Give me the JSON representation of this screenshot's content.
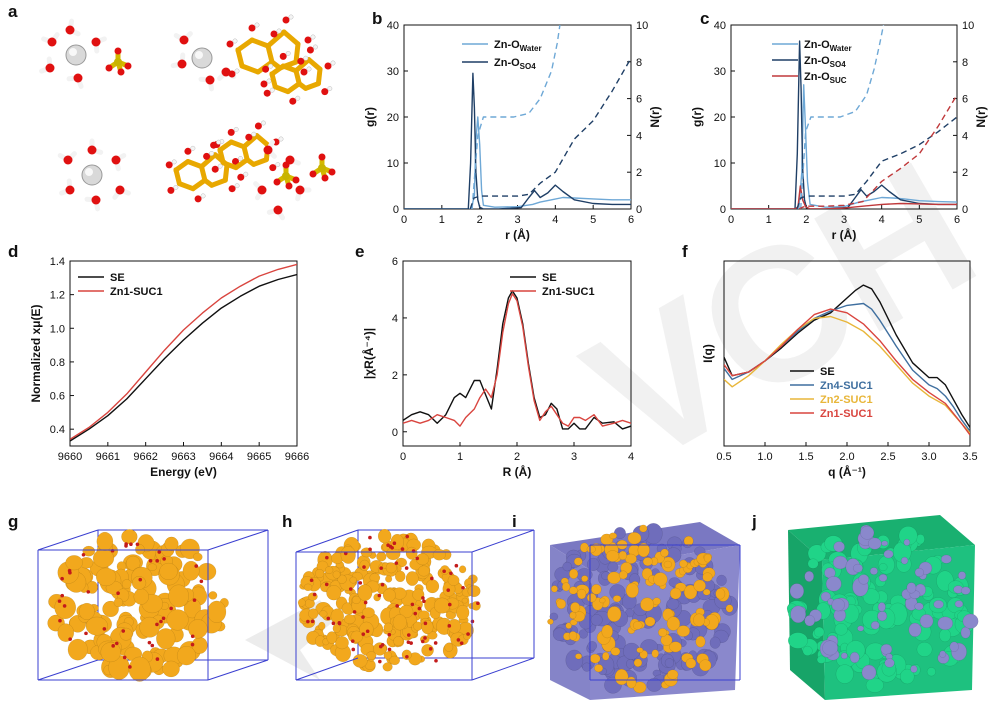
{
  "figure": {
    "watermark_text": "VCH",
    "panel_letters": [
      "a",
      "b",
      "c",
      "d",
      "e",
      "f",
      "g",
      "h",
      "i",
      "j"
    ],
    "colors": {
      "water": "#6ea8d6",
      "so4": "#1f3f66",
      "suc": "#c0393b",
      "se_black": "#111111",
      "zn1_red": "#d9453f",
      "zn4_blue": "#3f6f9f",
      "zn2_yellow": "#e8b63a",
      "orange_cluster": "#f2a81d",
      "purple_cluster": "#8a88cc",
      "green_cluster": "#1ec17f",
      "box_edge": "#3a3fd0"
    }
  },
  "chart_data": [
    {
      "panel": "b",
      "type": "line",
      "xlabel": "r (Å)",
      "ylabel": "g(r)",
      "y2label": "N(r)",
      "xlim": [
        0,
        6
      ],
      "ylim": [
        0,
        40
      ],
      "y2lim": [
        0,
        10
      ],
      "xticks": [
        "0",
        "1",
        "2",
        "3",
        "4",
        "5",
        "6"
      ],
      "yticks": [
        "0",
        "10",
        "20",
        "30",
        "40"
      ],
      "y2ticks": [
        "0",
        "2",
        "4",
        "6",
        "8",
        "10"
      ],
      "legend": [
        "Zn-O",
        "Zn-O"
      ],
      "legend_subscripts": [
        "Water",
        "SO4"
      ],
      "series": [
        {
          "legend_index": 0,
          "color_key": "water",
          "style": "solid",
          "axis": "left",
          "x": [
            0,
            1.5,
            1.78,
            1.86,
            1.9,
            1.95,
            2.0,
            2.05,
            2.1,
            2.4,
            3.0,
            3.4,
            3.6,
            3.9,
            4.2,
            4.5,
            5.0,
            5.5,
            6.0
          ],
          "y": [
            0,
            0,
            0,
            3,
            15,
            20,
            14,
            4,
            0.8,
            0.4,
            0.5,
            1.0,
            1.5,
            2.0,
            2.5,
            2.4,
            2.2,
            2.0,
            2.0
          ]
        },
        {
          "legend_index": 1,
          "color_key": "so4",
          "style": "solid",
          "axis": "left",
          "x": [
            0,
            1.5,
            1.7,
            1.76,
            1.82,
            1.86,
            1.9,
            1.95,
            2.0,
            2.1,
            2.5,
            3.1,
            3.3,
            3.45,
            3.6,
            3.8,
            4.0,
            4.2,
            4.5,
            5.0,
            5.5,
            6.0
          ],
          "y": [
            0,
            0,
            0,
            10,
            29.5,
            22,
            8,
            2,
            0.4,
            0,
            0,
            0.3,
            2.5,
            4.0,
            2.5,
            3.5,
            5.2,
            3.8,
            2.0,
            1.2,
            1.0,
            1.0
          ]
        },
        {
          "legend_index": 0,
          "color_key": "water",
          "style": "dashed",
          "axis": "right",
          "x": [
            1.8,
            1.95,
            2.1,
            2.5,
            2.9,
            3.3,
            3.6,
            3.9,
            4.05,
            4.12
          ],
          "y": [
            0,
            4.0,
            5.0,
            5.0,
            5.0,
            5.2,
            6.0,
            7.5,
            9.0,
            10.0
          ]
        },
        {
          "legend_index": 1,
          "color_key": "so4",
          "style": "dashed",
          "axis": "right",
          "x": [
            1.75,
            1.85,
            2.0,
            2.5,
            3.0,
            3.3,
            3.6,
            4.0,
            4.5,
            5.0,
            5.5,
            6.0
          ],
          "y": [
            0,
            0.6,
            0.7,
            0.7,
            0.7,
            0.8,
            1.4,
            2.0,
            3.8,
            4.8,
            6.4,
            8.2
          ]
        }
      ]
    },
    {
      "panel": "c",
      "type": "line",
      "xlabel": "r (Å)",
      "ylabel": "g(r)",
      "y2label": "N(r)",
      "xlim": [
        0,
        6
      ],
      "ylim": [
        0,
        40
      ],
      "y2lim": [
        0,
        10
      ],
      "xticks": [
        "0",
        "1",
        "2",
        "3",
        "4",
        "5",
        "6"
      ],
      "yticks": [
        "0",
        "10",
        "20",
        "30",
        "40"
      ],
      "y2ticks": [
        "0",
        "2",
        "4",
        "6",
        "8",
        "10"
      ],
      "legend": [
        "Zn-O",
        "Zn-O",
        "Zn-O"
      ],
      "legend_subscripts": [
        "Water",
        "SO4",
        "SUC"
      ],
      "series": [
        {
          "legend_index": 0,
          "color_key": "water",
          "style": "solid",
          "axis": "left",
          "x": [
            0,
            1.5,
            1.8,
            1.88,
            1.93,
            1.98,
            2.03,
            2.1,
            2.5,
            3.0,
            3.4,
            3.7,
            4.0,
            4.3,
            4.6,
            5.0,
            5.5,
            6.0
          ],
          "y": [
            0,
            0,
            0,
            8,
            27,
            17,
            6,
            1,
            0.4,
            0.5,
            1.5,
            2.0,
            2.5,
            2.4,
            2.2,
            1.8,
            1.6,
            1.5
          ]
        },
        {
          "legend_index": 1,
          "color_key": "so4",
          "style": "solid",
          "axis": "left",
          "x": [
            0,
            1.5,
            1.7,
            1.76,
            1.82,
            1.86,
            1.9,
            1.95,
            2.0,
            2.1,
            2.5,
            3.1,
            3.3,
            3.45,
            3.6,
            3.8,
            4.0,
            4.2,
            4.5,
            5.0,
            5.5,
            6.0
          ],
          "y": [
            0,
            0,
            0,
            12,
            36.5,
            26,
            9,
            2,
            0.4,
            0,
            0,
            0.3,
            2.5,
            4.2,
            2.8,
            3.8,
            5.2,
            3.8,
            2.0,
            1.2,
            1.0,
            1.0
          ]
        },
        {
          "legend_index": 2,
          "color_key": "suc",
          "style": "solid",
          "axis": "left",
          "x": [
            0,
            1.7,
            1.78,
            1.84,
            1.9,
            1.98,
            2.1,
            2.5,
            3.0,
            3.5,
            4.0,
            4.5,
            5.0,
            5.5,
            6.0
          ],
          "y": [
            0,
            0,
            0.5,
            5,
            2,
            0.5,
            0,
            0,
            0.2,
            0.6,
            1.0,
            1.2,
            1.1,
            1.0,
            1.0
          ]
        },
        {
          "legend_index": 0,
          "color_key": "water",
          "style": "dashed",
          "axis": "right",
          "x": [
            1.85,
            1.98,
            2.12,
            2.5,
            2.9,
            3.3,
            3.6,
            3.8,
            3.95,
            4.05
          ],
          "y": [
            0,
            4.2,
            5.0,
            5.0,
            5.0,
            5.3,
            6.2,
            7.6,
            9.0,
            10.0
          ]
        },
        {
          "legend_index": 1,
          "color_key": "so4",
          "style": "dashed",
          "axis": "right",
          "x": [
            1.75,
            1.85,
            2.0,
            2.5,
            3.0,
            3.3,
            3.6,
            4.0,
            4.5,
            5.0,
            5.5,
            6.0
          ],
          "y": [
            0,
            0.6,
            0.7,
            0.7,
            0.7,
            0.8,
            1.5,
            2.6,
            3.0,
            3.5,
            4.2,
            5.0
          ]
        },
        {
          "legend_index": 2,
          "color_key": "suc",
          "style": "dashed",
          "axis": "right",
          "x": [
            1.8,
            1.9,
            2.0,
            2.5,
            3.0,
            3.5,
            4.0,
            4.5,
            5.0,
            5.5,
            6.0
          ],
          "y": [
            0,
            0.1,
            0.15,
            0.15,
            0.2,
            0.4,
            1.5,
            2.2,
            3.0,
            4.5,
            6.2
          ]
        }
      ]
    },
    {
      "panel": "d",
      "type": "line",
      "xlabel": "Energy (eV)",
      "ylabel": "Normalized xμ(E)",
      "xlim": [
        9660,
        9666
      ],
      "ylim": [
        0.3,
        1.4
      ],
      "xticks": [
        "9660",
        "9661",
        "9662",
        "9663",
        "9664",
        "9665",
        "9666"
      ],
      "yticks": [
        "0.4",
        "0.6",
        "0.8",
        "1.0",
        "1.2",
        "1.4"
      ],
      "legend": [
        "SE",
        "Zn1-SUC1"
      ],
      "series": [
        {
          "name": "SE",
          "color_key": "se_black",
          "x": [
            9660,
            9660.5,
            9661,
            9661.5,
            9662,
            9662.5,
            9663,
            9663.5,
            9664,
            9664.5,
            9665,
            9665.5,
            9666
          ],
          "y": [
            0.33,
            0.4,
            0.48,
            0.58,
            0.7,
            0.82,
            0.93,
            1.03,
            1.12,
            1.19,
            1.25,
            1.29,
            1.32
          ]
        },
        {
          "name": "Zn1-SUC1",
          "color_key": "zn1_red",
          "x": [
            9660,
            9660.5,
            9661,
            9661.5,
            9662,
            9662.5,
            9663,
            9663.5,
            9664,
            9664.5,
            9665,
            9665.5,
            9666
          ],
          "y": [
            0.34,
            0.41,
            0.5,
            0.61,
            0.74,
            0.87,
            0.99,
            1.09,
            1.18,
            1.25,
            1.31,
            1.35,
            1.38
          ]
        }
      ]
    },
    {
      "panel": "e",
      "type": "line",
      "xlabel": "R (Å)",
      "ylabel": "|χR(Å⁻⁴)|",
      "xlim": [
        0,
        4
      ],
      "ylim": [
        -0.5,
        6
      ],
      "xticks": [
        "0",
        "1",
        "2",
        "3",
        "4"
      ],
      "yticks": [
        "0",
        "2",
        "4",
        "6"
      ],
      "legend": [
        "SE",
        "Zn1-SUC1"
      ],
      "series": [
        {
          "name": "SE",
          "color_key": "se_black",
          "x": [
            0,
            0.15,
            0.3,
            0.45,
            0.6,
            0.75,
            0.9,
            1.0,
            1.1,
            1.25,
            1.35,
            1.45,
            1.55,
            1.65,
            1.75,
            1.85,
            1.92,
            2.0,
            2.1,
            2.2,
            2.3,
            2.4,
            2.5,
            2.6,
            2.7,
            2.8,
            2.9,
            3.0,
            3.1,
            3.2,
            3.35,
            3.5,
            3.7,
            3.85,
            4.0
          ],
          "y": [
            0.4,
            0.6,
            0.7,
            0.6,
            0.3,
            0.6,
            1.2,
            1.35,
            1.2,
            1.8,
            1.8,
            1.3,
            0.8,
            2.2,
            3.8,
            4.7,
            4.95,
            4.7,
            3.8,
            2.4,
            1.2,
            0.5,
            0.6,
            1.0,
            0.8,
            0.1,
            0.1,
            0.3,
            0.1,
            0.1,
            0.5,
            0.3,
            0.35,
            0.1,
            0.2
          ]
        },
        {
          "name": "Zn1-SUC1",
          "color_key": "zn1_red",
          "x": [
            0,
            0.15,
            0.3,
            0.45,
            0.6,
            0.75,
            0.9,
            1.0,
            1.1,
            1.25,
            1.35,
            1.45,
            1.55,
            1.65,
            1.75,
            1.85,
            1.92,
            2.0,
            2.1,
            2.2,
            2.3,
            2.4,
            2.5,
            2.6,
            2.7,
            2.8,
            2.9,
            3.0,
            3.1,
            3.2,
            3.35,
            3.5,
            3.7,
            3.85,
            4.0
          ],
          "y": [
            0.3,
            0.4,
            0.3,
            0.4,
            0.6,
            0.5,
            0.4,
            0.2,
            0.5,
            0.8,
            1.2,
            1.5,
            1.2,
            2.0,
            3.5,
            4.5,
            4.85,
            4.6,
            3.7,
            2.3,
            1.1,
            0.4,
            0.7,
            0.9,
            0.6,
            0.3,
            0.2,
            0.5,
            0.5,
            0.4,
            0.6,
            0.2,
            0.3,
            0.4,
            0.3
          ]
        }
      ]
    },
    {
      "panel": "f",
      "type": "line",
      "xlabel": "q (Å⁻¹)",
      "ylabel": "I(q)",
      "xlim": [
        0.5,
        3.5
      ],
      "ylim": [
        0,
        1
      ],
      "xticks": [
        "0.5",
        "1.0",
        "1.5",
        "2.0",
        "2.5",
        "3.0",
        "3.5"
      ],
      "yticks": [],
      "legend": [
        "SE",
        "Zn4-SUC1",
        "Zn2-SUC1",
        "Zn1-SUC1"
      ],
      "series": [
        {
          "name": "SE",
          "color_key": "se_black",
          "x": [
            0.5,
            0.6,
            0.8,
            1.0,
            1.2,
            1.4,
            1.6,
            1.8,
            2.0,
            2.1,
            2.2,
            2.3,
            2.4,
            2.6,
            2.8,
            3.0,
            3.1,
            3.2,
            3.3,
            3.4,
            3.5
          ],
          "y": [
            0.48,
            0.38,
            0.4,
            0.46,
            0.53,
            0.61,
            0.68,
            0.72,
            0.8,
            0.84,
            0.87,
            0.85,
            0.78,
            0.6,
            0.45,
            0.37,
            0.37,
            0.33,
            0.25,
            0.17,
            0.1
          ]
        },
        {
          "name": "Zn4-SUC1",
          "color_key": "zn4_blue",
          "x": [
            0.5,
            0.6,
            0.8,
            1.0,
            1.2,
            1.4,
            1.6,
            1.8,
            2.0,
            2.2,
            2.3,
            2.4,
            2.6,
            2.8,
            3.0,
            3.1,
            3.2,
            3.3,
            3.4,
            3.5
          ],
          "y": [
            0.42,
            0.36,
            0.4,
            0.46,
            0.54,
            0.62,
            0.69,
            0.73,
            0.76,
            0.77,
            0.74,
            0.68,
            0.54,
            0.41,
            0.33,
            0.31,
            0.27,
            0.21,
            0.14,
            0.08
          ]
        },
        {
          "name": "Zn2-SUC1",
          "color_key": "zn2_yellow",
          "x": [
            0.5,
            0.6,
            0.8,
            1.0,
            1.2,
            1.4,
            1.6,
            1.8,
            2.0,
            2.2,
            2.4,
            2.6,
            2.8,
            3.0,
            3.2,
            3.4,
            3.5
          ],
          "y": [
            0.36,
            0.32,
            0.38,
            0.46,
            0.55,
            0.63,
            0.69,
            0.7,
            0.67,
            0.62,
            0.54,
            0.44,
            0.34,
            0.27,
            0.22,
            0.12,
            0.07
          ]
        },
        {
          "name": "Zn1-SUC1",
          "color_key": "zn1_red",
          "x": [
            0.5,
            0.6,
            0.8,
            1.0,
            1.2,
            1.4,
            1.6,
            1.8,
            2.0,
            2.2,
            2.4,
            2.6,
            2.8,
            3.0,
            3.2,
            3.4,
            3.5
          ],
          "y": [
            0.44,
            0.38,
            0.4,
            0.46,
            0.54,
            0.63,
            0.71,
            0.74,
            0.72,
            0.66,
            0.57,
            0.46,
            0.36,
            0.29,
            0.23,
            0.12,
            0.06
          ]
        }
      ]
    }
  ]
}
